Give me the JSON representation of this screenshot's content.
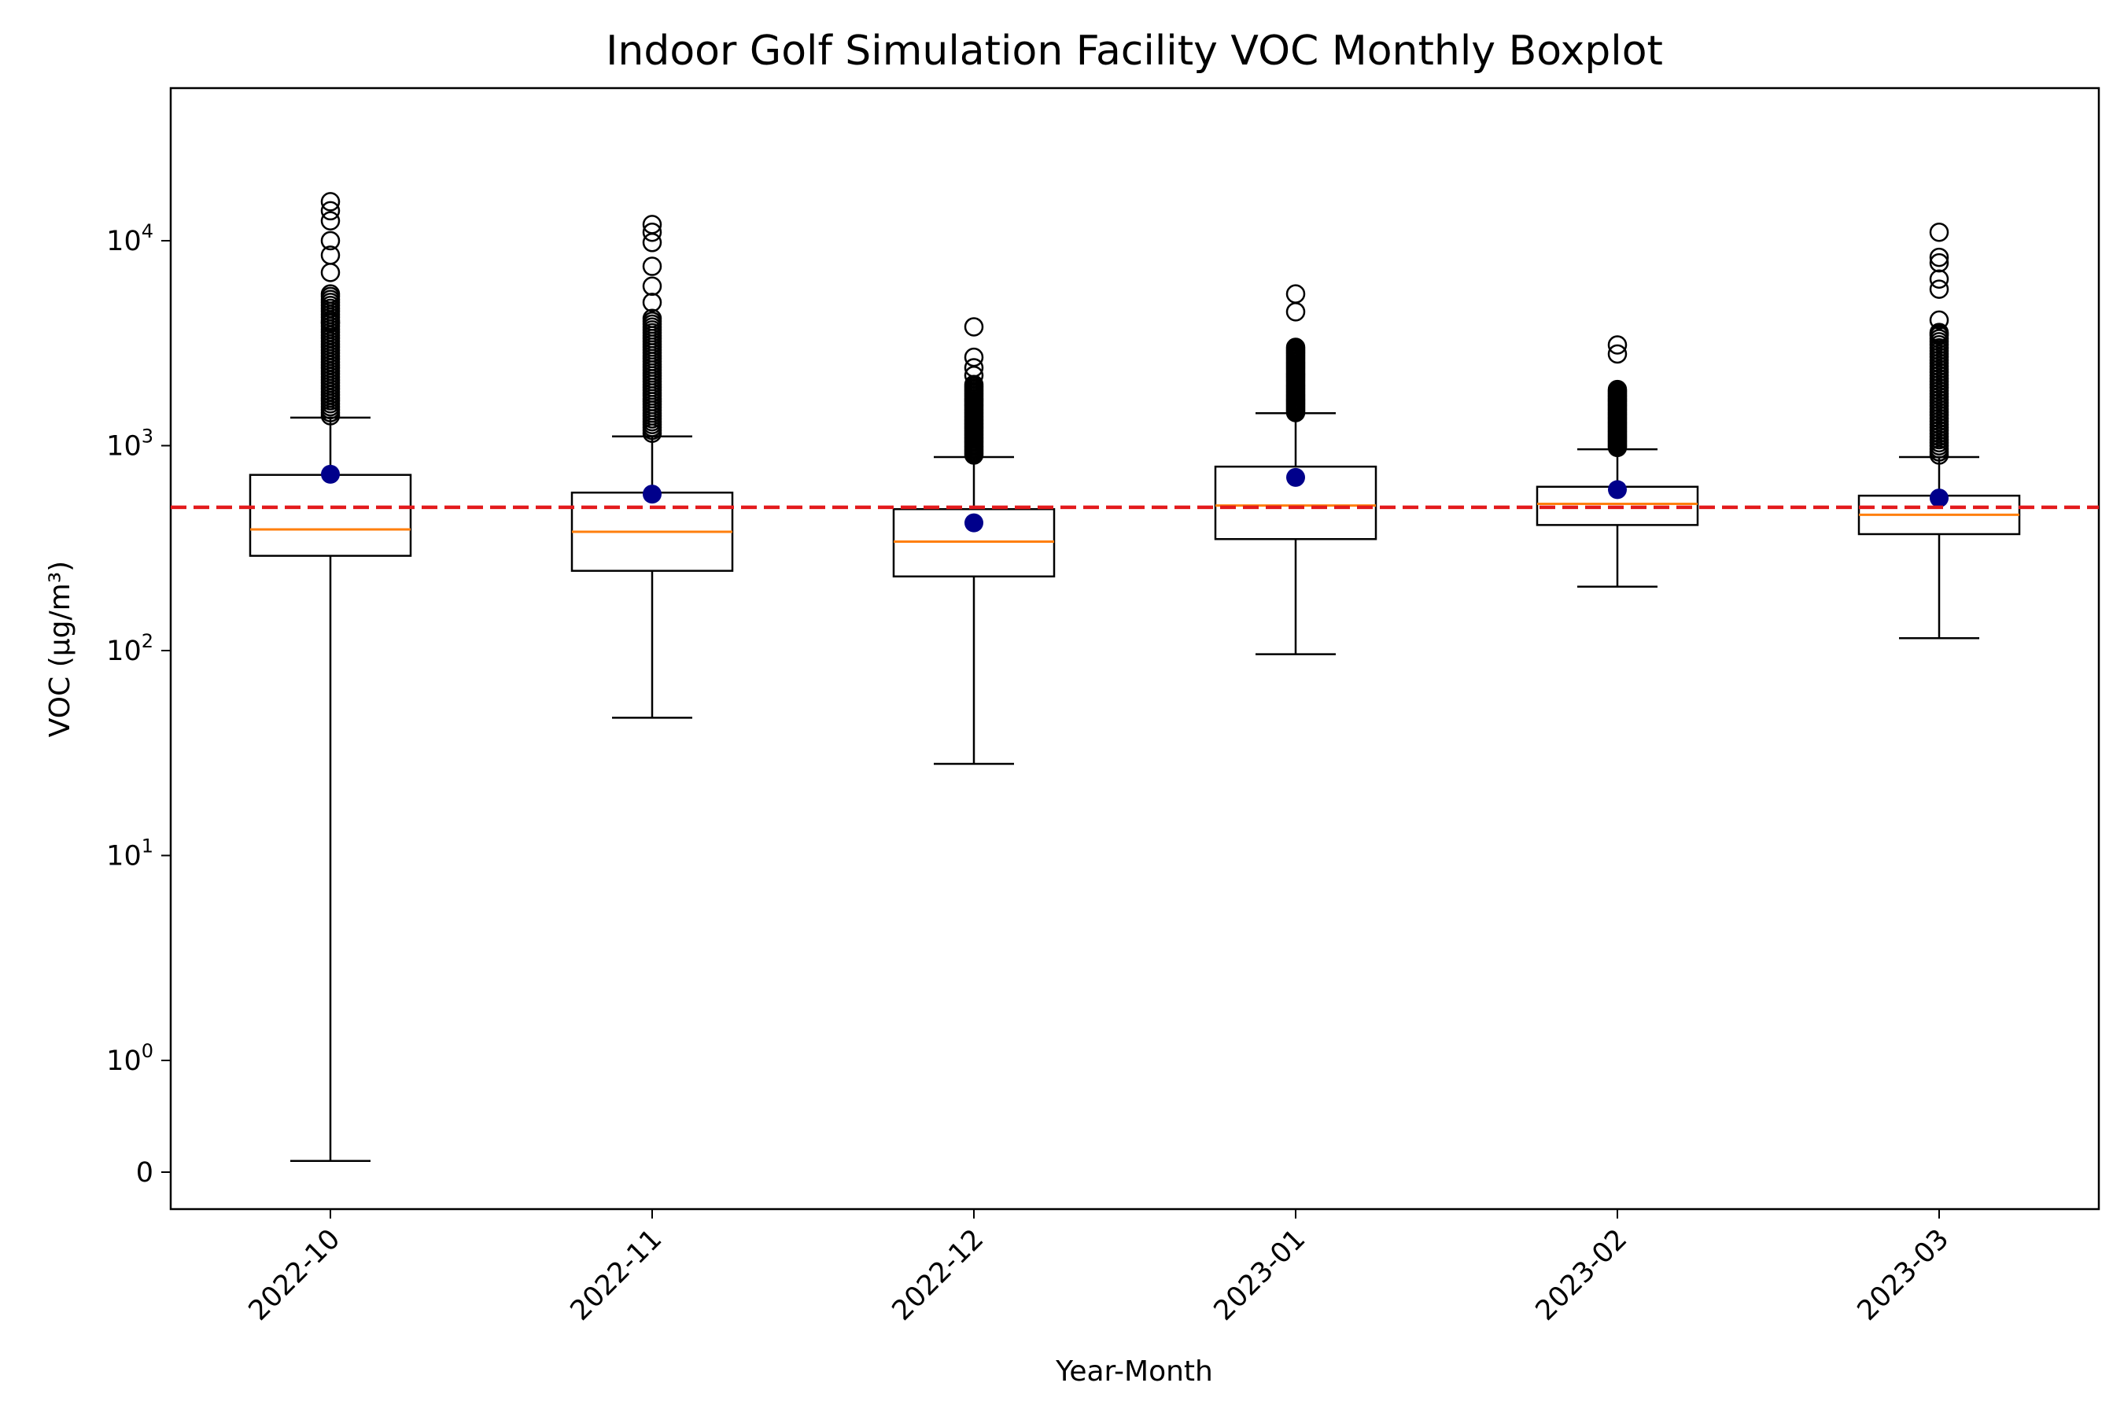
{
  "chart_data": {
    "type": "boxplot",
    "title": "Indoor Golf Simulation Facility VOC Monthly Boxplot",
    "xlabel": "Year-Month",
    "ylabel": "VOC (µg/m³)",
    "yscale": "symlog",
    "categories": [
      "2022-10",
      "2022-11",
      "2022-12",
      "2023-01",
      "2023-02",
      "2023-03"
    ],
    "y_ticks": [
      {
        "base": "0",
        "exp": "",
        "value": 0
      },
      {
        "base": "10",
        "exp": "0",
        "value": 1
      },
      {
        "base": "10",
        "exp": "1",
        "value": 10
      },
      {
        "base": "10",
        "exp": "2",
        "value": 100
      },
      {
        "base": "10",
        "exp": "3",
        "value": 1000
      },
      {
        "base": "10",
        "exp": "4",
        "value": 10000
      }
    ],
    "reference_line": {
      "value": 500,
      "color": "#e31a1c",
      "style": "dashed"
    },
    "boxes": [
      {
        "category": "2022-10",
        "whisker_low": 0.1,
        "q1": 290,
        "median": 390,
        "q3": 720,
        "whisker_high": 1370,
        "mean": 725,
        "outlier_min": 1400,
        "outlier_max": 16000,
        "outlier_extra": [
          4000,
          5500,
          7000,
          8500,
          10000,
          12500,
          14000,
          15500
        ]
      },
      {
        "category": "2022-11",
        "whisker_low": 47,
        "q1": 245,
        "median": 380,
        "q3": 590,
        "whisker_high": 1110,
        "mean": 580,
        "outlier_min": 1150,
        "outlier_max": 12000,
        "outlier_extra": [
          5000,
          6000,
          7500,
          9800,
          11000,
          12000
        ]
      },
      {
        "category": "2022-12",
        "whisker_low": 28,
        "q1": 230,
        "median": 340,
        "q3": 490,
        "whisker_high": 880,
        "mean": 420,
        "outlier_min": 900,
        "outlier_max": 3800,
        "outlier_extra": [
          2200,
          2400,
          2700,
          3800
        ]
      },
      {
        "category": "2023-01",
        "whisker_low": 96,
        "q1": 350,
        "median": 510,
        "q3": 790,
        "whisker_high": 1440,
        "mean": 700,
        "outlier_min": 1450,
        "outlier_max": 5500,
        "outlier_extra": [
          4500,
          5500
        ]
      },
      {
        "category": "2023-02",
        "whisker_low": 205,
        "q1": 410,
        "median": 520,
        "q3": 630,
        "whisker_high": 960,
        "mean": 610,
        "outlier_min": 980,
        "outlier_max": 3200,
        "outlier_extra": [
          2800,
          3100
        ]
      },
      {
        "category": "2023-03",
        "whisker_low": 115,
        "q1": 370,
        "median": 460,
        "q3": 570,
        "whisker_high": 880,
        "mean": 555,
        "outlier_min": 900,
        "outlier_max": 11000,
        "outlier_extra": [
          3500,
          4100,
          5800,
          6500,
          7800,
          8300,
          11000
        ]
      }
    ],
    "colors": {
      "box": "#000000",
      "median": "#ff7f0e",
      "mean": "#00008b",
      "reference": "#e31a1c"
    }
  }
}
